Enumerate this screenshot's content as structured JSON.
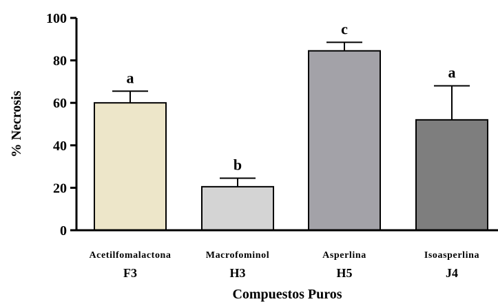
{
  "chart_data": {
    "type": "bar",
    "xlabel": "Compuestos Puros",
    "ylabel": "% Necrosis",
    "ylim": [
      0,
      100
    ],
    "yticks": [
      0,
      20,
      40,
      60,
      80,
      100
    ],
    "grid": false,
    "legend": "none",
    "categories": [
      {
        "name": "Acetilfomalactona",
        "code": "F3"
      },
      {
        "name": "Macrofominol",
        "code": "H3"
      },
      {
        "name": "Asperlina",
        "code": "H5"
      },
      {
        "name": "Isoasperlina",
        "code": "J4"
      }
    ],
    "values": [
      60,
      20.5,
      84.5,
      52
    ],
    "error_upper": [
      65.5,
      24.5,
      88.5,
      68
    ],
    "significance_letters": [
      "a",
      "b",
      "c",
      "a"
    ],
    "colors": [
      "#ede6c9",
      "#d4d4d4",
      "#a3a2a8",
      "#7e7e7e"
    ]
  }
}
